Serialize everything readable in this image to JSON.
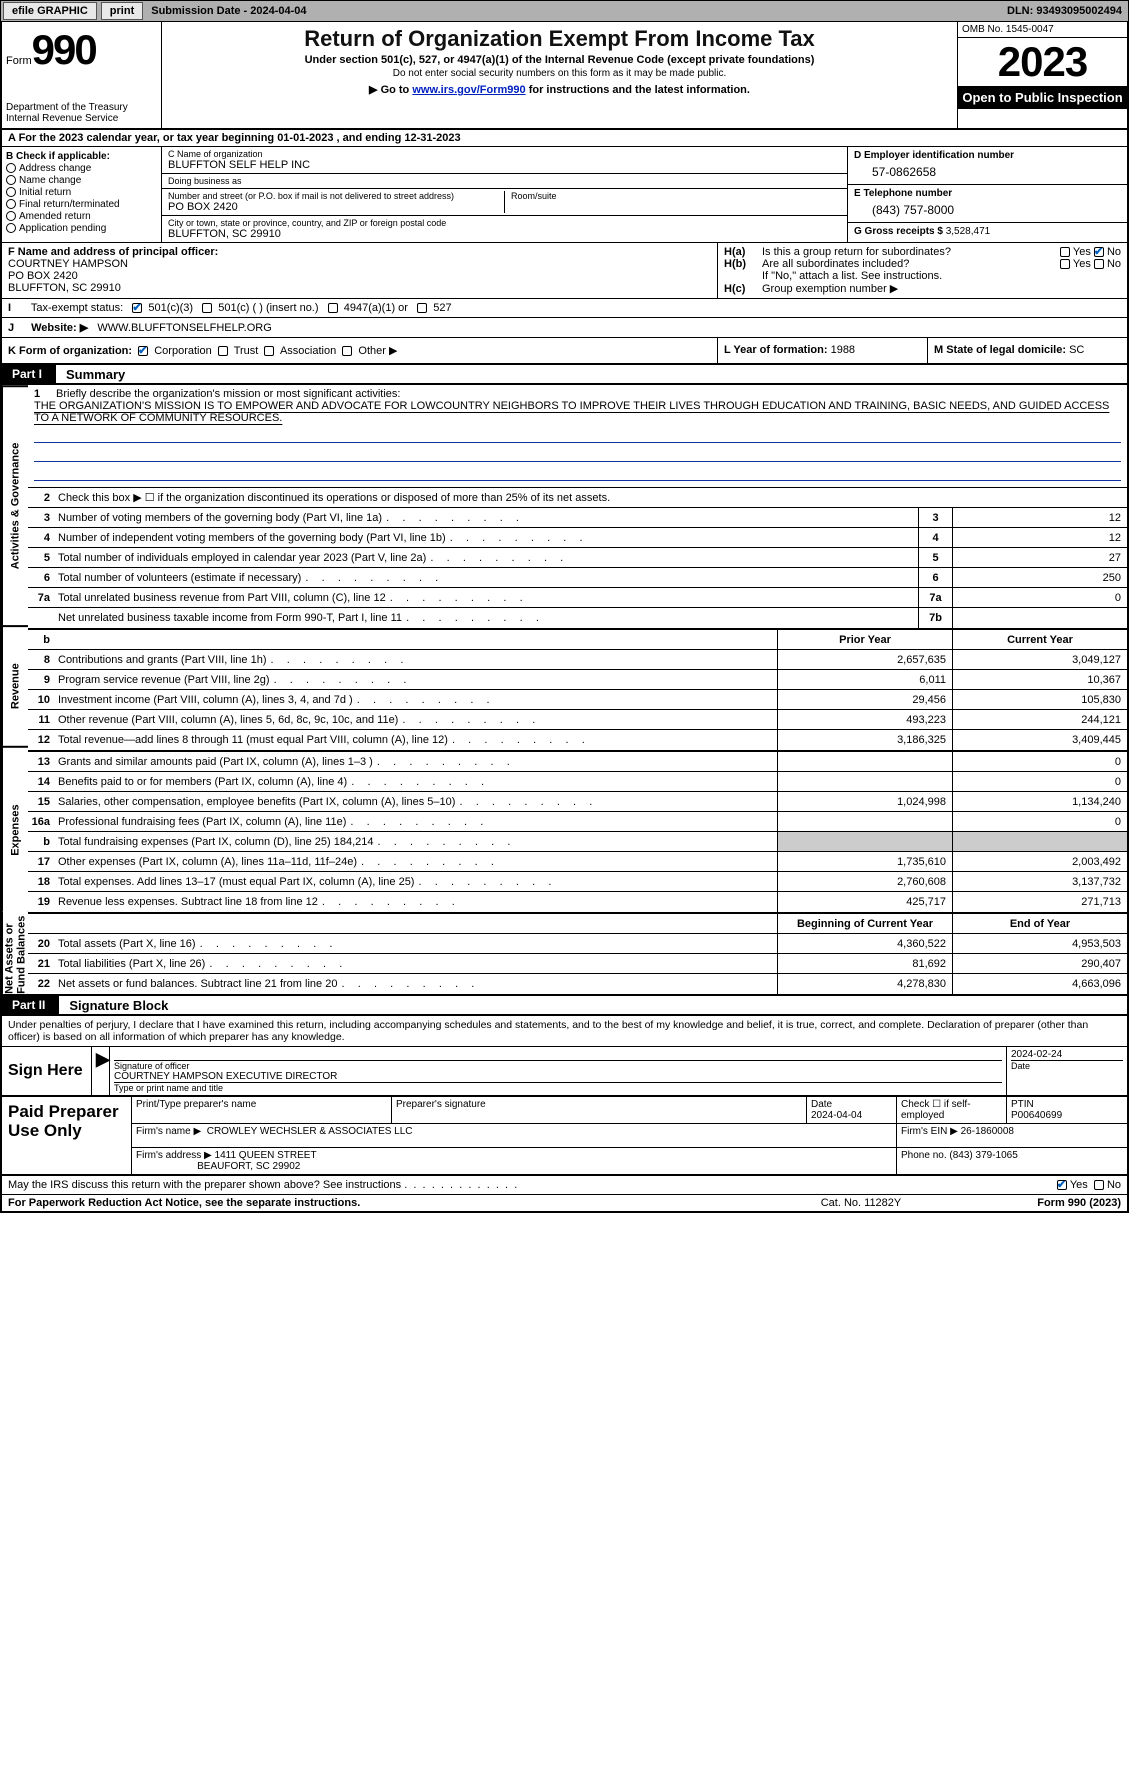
{
  "topbar": {
    "efile": "efile GRAPHIC",
    "print": "print",
    "submission": "Submission Date - 2024-04-04",
    "dln": "DLN: 93493095002494"
  },
  "header": {
    "form_word": "Form",
    "form_num": "990",
    "dept": "Department of the Treasury Internal Revenue Service",
    "title": "Return of Organization Exempt From Income Tax",
    "sub": "Under section 501(c), 527, or 4947(a)(1) of the Internal Revenue Code (except private foundations)",
    "sub2": "Do not enter social security numbers on this form as it may be made public.",
    "goto_pre": "Go to ",
    "goto_link": "www.irs.gov/Form990",
    "goto_post": " for instructions and the latest information.",
    "omb": "OMB No. 1545-0047",
    "year": "2023",
    "open": "Open to Public Inspection"
  },
  "line_a": "A For the 2023 calendar year, or tax year beginning 01-01-2023   , and ending 12-31-2023",
  "col_b": {
    "hdr": "B Check if applicable:",
    "opts": [
      "Address change",
      "Name change",
      "Initial return",
      "Final return/terminated",
      "Amended return",
      "Application pending"
    ]
  },
  "col_c": {
    "name_lbl": "C Name of organization",
    "name": "BLUFFTON SELF HELP INC",
    "dba_lbl": "Doing business as",
    "dba": "",
    "street_lbl": "Number and street (or P.O. box if mail is not delivered to street address)",
    "street": "PO BOX 2420",
    "room_lbl": "Room/suite",
    "room": "",
    "city_lbl": "City or town, state or province, country, and ZIP or foreign postal code",
    "city": "BLUFFTON, SC  29910"
  },
  "col_d": {
    "ein_lbl": "D Employer identification number",
    "ein": "57-0862658",
    "tel_lbl": "E Telephone number",
    "tel": "(843) 757-8000",
    "gross_lbl": "G Gross receipts $",
    "gross": "3,528,471"
  },
  "col_f": {
    "lbl": "F Name and address of principal officer:",
    "name": "COURTNEY HAMPSON",
    "addr1": "PO BOX 2420",
    "addr2": "BLUFFTON, SC  29910"
  },
  "col_h": {
    "ha1": "H(a)",
    "ha1_txt": "Is this a group return for subordinates?",
    "hb": "H(b)",
    "hb_txt": "Are all subordinates included?",
    "hb_note": "If \"No,\" attach a list. See instructions.",
    "hc": "H(c)",
    "hc_txt": "Group exemption number ▶"
  },
  "row_i": {
    "lbl": "I",
    "txt": "Tax-exempt status:",
    "o1": "501(c)(3)",
    "o2": "501(c) (   ) (insert no.)",
    "o3": "4947(a)(1) or",
    "o4": "527"
  },
  "row_j": {
    "lbl": "J",
    "txt": "Website: ▶",
    "val": "WWW.BLUFFTONSELFHELP.ORG"
  },
  "row_k": {
    "lbl": "K Form of organization:",
    "o1": "Corporation",
    "o2": "Trust",
    "o3": "Association",
    "o4": "Other ▶",
    "l_lbl": "L Year of formation:",
    "l_val": "1988",
    "m_lbl": "M State of legal domicile:",
    "m_val": "SC"
  },
  "parts": {
    "p1_lbl": "Part I",
    "p1_txt": "Summary",
    "p2_lbl": "Part II",
    "p2_txt": "Signature Block"
  },
  "vtabs": {
    "ag": "Activities & Governance",
    "rev": "Revenue",
    "exp": "Expenses",
    "net": "Net Assets or Fund Balances"
  },
  "mission": {
    "n": "1",
    "lbl": "Briefly describe the organization's mission or most significant activities:",
    "txt": "THE ORGANIZATION'S MISSION IS TO EMPOWER AND ADVOCATE FOR LOWCOUNTRY NEIGHBORS TO IMPROVE THEIR LIVES THROUGH EDUCATION AND TRAINING, BASIC NEEDS, AND GUIDED ACCESS TO A NETWORK OF COMMUNITY RESOURCES."
  },
  "ag_lines": [
    {
      "n": "2",
      "d": "Check this box ▶ ☐ if the organization discontinued its operations or disposed of more than 25% of its net assets.",
      "box": "",
      "v": ""
    },
    {
      "n": "3",
      "d": "Number of voting members of the governing body (Part VI, line 1a)",
      "box": "3",
      "v": "12"
    },
    {
      "n": "4",
      "d": "Number of independent voting members of the governing body (Part VI, line 1b)",
      "box": "4",
      "v": "12"
    },
    {
      "n": "5",
      "d": "Total number of individuals employed in calendar year 2023 (Part V, line 2a)",
      "box": "5",
      "v": "27"
    },
    {
      "n": "6",
      "d": "Total number of volunteers (estimate if necessary)",
      "box": "6",
      "v": "250"
    },
    {
      "n": "7a",
      "d": "Total unrelated business revenue from Part VIII, column (C), line 12",
      "box": "7a",
      "v": "0"
    },
    {
      "n": "",
      "d": "Net unrelated business taxable income from Form 990-T, Part I, line 11",
      "box": "7b",
      "v": ""
    }
  ],
  "rev_hdr": {
    "b": "b",
    "py": "Prior Year",
    "cy": "Current Year"
  },
  "rev_lines": [
    {
      "n": "8",
      "d": "Contributions and grants (Part VIII, line 1h)",
      "py": "2,657,635",
      "cy": "3,049,127"
    },
    {
      "n": "9",
      "d": "Program service revenue (Part VIII, line 2g)",
      "py": "6,011",
      "cy": "10,367"
    },
    {
      "n": "10",
      "d": "Investment income (Part VIII, column (A), lines 3, 4, and 7d )",
      "py": "29,456",
      "cy": "105,830"
    },
    {
      "n": "11",
      "d": "Other revenue (Part VIII, column (A), lines 5, 6d, 8c, 9c, 10c, and 11e)",
      "py": "493,223",
      "cy": "244,121"
    },
    {
      "n": "12",
      "d": "Total revenue—add lines 8 through 11 (must equal Part VIII, column (A), line 12)",
      "py": "3,186,325",
      "cy": "3,409,445"
    }
  ],
  "exp_lines": [
    {
      "n": "13",
      "d": "Grants and similar amounts paid (Part IX, column (A), lines 1–3 )",
      "py": "",
      "cy": "0"
    },
    {
      "n": "14",
      "d": "Benefits paid to or for members (Part IX, column (A), line 4)",
      "py": "",
      "cy": "0"
    },
    {
      "n": "15",
      "d": "Salaries, other compensation, employee benefits (Part IX, column (A), lines 5–10)",
      "py": "1,024,998",
      "cy": "1,134,240"
    },
    {
      "n": "16a",
      "d": "Professional fundraising fees (Part IX, column (A), line 11e)",
      "py": "",
      "cy": "0"
    },
    {
      "n": "b",
      "d": "Total fundraising expenses (Part IX, column (D), line 25) 184,214",
      "py": "GRAY",
      "cy": "GRAY"
    },
    {
      "n": "17",
      "d": "Other expenses (Part IX, column (A), lines 11a–11d, 11f–24e)",
      "py": "1,735,610",
      "cy": "2,003,492"
    },
    {
      "n": "18",
      "d": "Total expenses. Add lines 13–17 (must equal Part IX, column (A), line 25)",
      "py": "2,760,608",
      "cy": "3,137,732"
    },
    {
      "n": "19",
      "d": "Revenue less expenses. Subtract line 18 from line 12",
      "py": "425,717",
      "cy": "271,713"
    }
  ],
  "net_hdr": {
    "py": "Beginning of Current Year",
    "cy": "End of Year"
  },
  "net_lines": [
    {
      "n": "20",
      "d": "Total assets (Part X, line 16)",
      "py": "4,360,522",
      "cy": "4,953,503"
    },
    {
      "n": "21",
      "d": "Total liabilities (Part X, line 26)",
      "py": "81,692",
      "cy": "290,407"
    },
    {
      "n": "22",
      "d": "Net assets or fund balances. Subtract line 21 from line 20",
      "py": "4,278,830",
      "cy": "4,663,096"
    }
  ],
  "sig_intro": "Under penalties of perjury, I declare that I have examined this return, including accompanying schedules and statements, and to the best of my knowledge and belief, it is true, correct, and complete. Declaration of preparer (other than officer) is based on all information of which preparer has any knowledge.",
  "sign_here": "Sign Here",
  "sig": {
    "date": "2024-02-24",
    "sig_lbl": "Signature of officer",
    "officer": "COURTNEY HAMPSON  EXECUTIVE DIRECTOR",
    "type_lbl": "Type or print name and title",
    "date_lbl": "Date"
  },
  "paid_lbl": "Paid Preparer Use Only",
  "paid": {
    "r1": {
      "a": "Print/Type preparer's name",
      "b": "Preparer's signature",
      "c": "Date",
      "cv": "2024-04-04",
      "d": "Check ☐ if self-employed",
      "e": "PTIN",
      "ev": "P00640699"
    },
    "r2": {
      "a": "Firm's name    ▶",
      "av": "CROWLEY WECHSLER & ASSOCIATES LLC",
      "b": "Firm's EIN ▶",
      "bv": "26-1860008"
    },
    "r3": {
      "a": "Firm's address ▶",
      "av1": "1411 QUEEN STREET",
      "av2": "BEAUFORT, SC  29902",
      "b": "Phone no.",
      "bv": "(843) 379-1065"
    }
  },
  "discuss": "May the IRS discuss this return with the preparer shown above? See instructions .",
  "yes": "Yes",
  "no": "No",
  "footer": {
    "f1": "For Paperwork Reduction Act Notice, see the separate instructions.",
    "f2": "Cat. No. 11282Y",
    "f3": "Form 990 (2023)"
  },
  "colors": {
    "link": "#0020c0",
    "topbar_bg": "#b0b0b0",
    "gray_cell": "#cccccc",
    "check_blue": "#0060c0"
  }
}
